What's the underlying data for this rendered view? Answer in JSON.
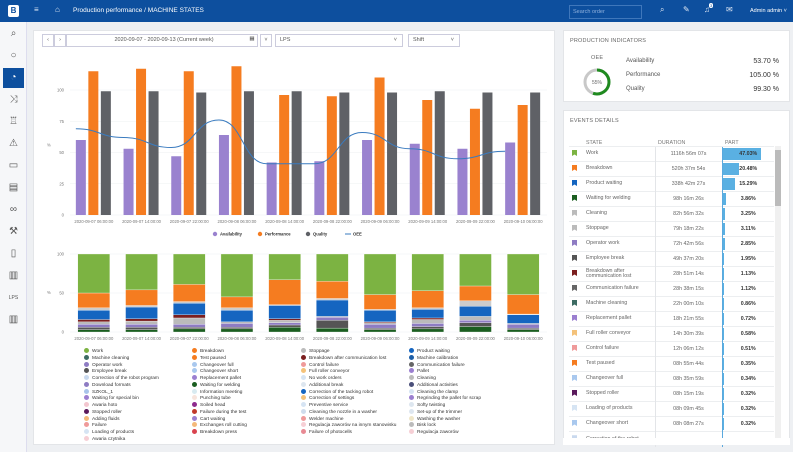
{
  "header": {
    "logo": "B",
    "breadcrumb": "Production performance / MACHINE STATES",
    "search_placeholder": "Search order",
    "user": "Admin admin ˅",
    "notifications": "3"
  },
  "sidebar": {
    "lps_label": "LPS"
  },
  "filters": {
    "date_range": "2020-09-07 - 2020-09-13 (Current week)",
    "line": "LPS",
    "shift": "Shift"
  },
  "indicators": {
    "title": "PRODUCTION INDICATORS",
    "oee_label": "OEE",
    "oee_value": "55%",
    "oee_fraction": 0.55,
    "items": [
      {
        "label": "Availability",
        "value": "53.70 %"
      },
      {
        "label": "Performance",
        "value": "105.00 %"
      },
      {
        "label": "Quality",
        "value": "99.30 %"
      }
    ]
  },
  "events": {
    "title": "EVENTS DETAILS",
    "columns": [
      "STATE",
      "DURATION",
      "PART"
    ],
    "rows": [
      {
        "state": "Work",
        "duration": "1116h 56m 07s",
        "part": "47.03%",
        "pct": 47.03,
        "color": "#7cb342"
      },
      {
        "state": "Breakdown",
        "duration": "520h 37m 54s",
        "part": "20.48%",
        "pct": 20.48,
        "color": "#f57c20"
      },
      {
        "state": "Product waiting",
        "duration": "338h 42m 27s",
        "part": "15.29%",
        "pct": 15.29,
        "color": "#1565c0"
      },
      {
        "state": "Waiting for welding",
        "duration": "98h 16m 26s",
        "part": "3.86%",
        "pct": 3.86,
        "color": "#1b5e20"
      },
      {
        "state": "Cleaning",
        "duration": "82h 56m 32s",
        "part": "3.25%",
        "pct": 3.25,
        "color": "#bbbbbb"
      },
      {
        "state": "Stoppage",
        "duration": "79h 18m 22s",
        "part": "3.11%",
        "pct": 3.11,
        "color": "#bbbbbb"
      },
      {
        "state": "Operator work",
        "duration": "72h 42m 56s",
        "part": "2.85%",
        "pct": 2.85,
        "color": "#8e7cc3"
      },
      {
        "state": "Employee break",
        "duration": "49h 37m 20s",
        "part": "1.95%",
        "pct": 1.95,
        "color": "#555555"
      },
      {
        "state": "Breakdown after communication lost",
        "duration": "28h 51m 14s",
        "part": "1.13%",
        "pct": 1.13,
        "color": "#7b1f1f"
      },
      {
        "state": "Communication failure",
        "duration": "28h 38m 15s",
        "part": "1.12%",
        "pct": 1.12,
        "color": "#666666"
      },
      {
        "state": "Machine cleaning",
        "duration": "22h 00m 10s",
        "part": "0.86%",
        "pct": 0.86,
        "color": "#3d6b63"
      },
      {
        "state": "Replacement pallet",
        "duration": "18h 21m 55s",
        "part": "0.72%",
        "pct": 0.72,
        "color": "#9b7fd0"
      },
      {
        "state": "Full roller conveyor",
        "duration": "14h 30m 39s",
        "part": "0.58%",
        "pct": 0.58,
        "color": "#f4c27a"
      },
      {
        "state": "Control failure",
        "duration": "12h 06m 12s",
        "part": "0.51%",
        "pct": 0.51,
        "color": "#ef9a9a"
      },
      {
        "state": "Test paused",
        "duration": "08h 55m 44s",
        "part": "0.35%",
        "pct": 0.35,
        "color": "#f57c20"
      },
      {
        "state": "Changeover full",
        "duration": "08h 35m 59s",
        "part": "0.34%",
        "pct": 0.34,
        "color": "#a9c8ee"
      },
      {
        "state": "Stopped roller",
        "duration": "08h 15m 19s",
        "part": "0.32%",
        "pct": 0.32,
        "color": "#5a1a5c"
      },
      {
        "state": "Loading of products",
        "duration": "08h 09m 45s",
        "part": "0.32%",
        "pct": 0.32,
        "color": "#d6e4f3"
      },
      {
        "state": "Changeover short",
        "duration": "08h 08m 27s",
        "part": "0.32%",
        "pct": 0.32,
        "color": "#a9c8ee"
      },
      {
        "state": "Correction of the robot",
        "duration": "",
        "part": "",
        "pct": 0,
        "color": "#c9d9ee"
      }
    ]
  },
  "chart_data": [
    {
      "type": "bar",
      "ylabel": "%",
      "ylim": [
        0,
        120
      ],
      "yticks": [
        0,
        25,
        50,
        75,
        100
      ],
      "grid": true,
      "legend": "bottom",
      "categories": [
        "2020-09-07 06:00:00",
        "2020-09-07 14:00:00",
        "2020-09-07 22:00:00",
        "2020-09-08 06:00:00",
        "2020-09-08 14:00:00",
        "2020-09-08 22:00:00",
        "2020-09-09 06:00:00",
        "2020-09-09 14:00:00",
        "2020-09-09 22:00:00",
        "2020-09-10 06:00:00"
      ],
      "series": [
        {
          "name": "Availability",
          "type": "bar",
          "color": "#9a82cf",
          "values": [
            60,
            53,
            47,
            64,
            42,
            43,
            60,
            57,
            53,
            58
          ]
        },
        {
          "name": "Performance",
          "type": "bar",
          "color": "#f57c20",
          "values": [
            115,
            117,
            115,
            119,
            96,
            95,
            110,
            92,
            85,
            88
          ]
        },
        {
          "name": "Quality",
          "type": "bar",
          "color": "#5f6166",
          "values": [
            99,
            99,
            98,
            99,
            99,
            98,
            98,
            99,
            98,
            98
          ]
        },
        {
          "name": "OEE",
          "type": "line",
          "color": "#3a7bbf",
          "values": [
            69,
            62,
            54,
            76,
            41,
            41,
            66,
            53,
            45,
            51
          ]
        }
      ]
    },
    {
      "type": "bar",
      "stacked": true,
      "ylabel": "%",
      "ylim": [
        0,
        100
      ],
      "yticks": [
        0,
        50,
        100
      ],
      "grid": true,
      "legend": "bottom",
      "categories": [
        "2020-09-07 06:00:00",
        "2020-09-07 14:00:00",
        "2020-09-07 22:00:00",
        "2020-09-08 06:00:00",
        "2020-09-08 14:00:00",
        "2020-09-08 22:00:00",
        "2020-09-09 06:00:00",
        "2020-09-09 14:00:00",
        "2020-09-09 22:00:00",
        "2020-09-10 06:00:00"
      ],
      "series": [
        {
          "name": "Waiting for welding",
          "color": "#1b5e20",
          "values": [
            3,
            3,
            4,
            4,
            6,
            5,
            3,
            4,
            7,
            3
          ]
        },
        {
          "name": "Employee break",
          "color": "#555555",
          "values": [
            3,
            3,
            2,
            2,
            3,
            10,
            2,
            3,
            5,
            2
          ]
        },
        {
          "name": "Operator work",
          "color": "#8e7cc3",
          "values": [
            4,
            4,
            4,
            5,
            3,
            4,
            5,
            4,
            3,
            5
          ]
        },
        {
          "name": "Cleaning",
          "color": "#bbbbbb",
          "values": [
            3,
            4,
            8,
            2,
            3,
            1,
            2,
            5,
            5,
            1
          ]
        },
        {
          "name": "Breakdown after communication lost",
          "color": "#7b1f1f",
          "values": [
            3,
            3,
            4,
            0,
            2,
            0,
            1,
            2,
            0,
            0
          ]
        },
        {
          "name": "Product waiting",
          "color": "#1565c0",
          "values": [
            12,
            15,
            15,
            15,
            17,
            21,
            15,
            11,
            13,
            11
          ]
        },
        {
          "name": "Stoppage",
          "color": "#cccccc",
          "values": [
            3,
            2,
            2,
            3,
            1,
            2,
            1,
            2,
            7,
            1
          ]
        },
        {
          "name": "Breakdown",
          "color": "#f57c20",
          "values": [
            19,
            20,
            22,
            14,
            32,
            22,
            19,
            22,
            19,
            25
          ]
        },
        {
          "name": "Work",
          "color": "#7cb342",
          "values": [
            50,
            46,
            39,
            55,
            33,
            35,
            52,
            47,
            41,
            52
          ]
        }
      ],
      "legend_items": [
        [
          [
            "Work",
            "#7cb342"
          ],
          [
            "Machine cleaning",
            "#3d6b63"
          ],
          [
            "Operator work",
            "#8e7cc3"
          ],
          [
            "Employee break",
            "#555555"
          ],
          [
            "Correction of the robot program",
            "#c9d9ee"
          ],
          [
            "Download formats",
            "#8e7cc3"
          ],
          [
            "SZKOL_1",
            "#a9c4ea"
          ],
          [
            "Waiting for special bin",
            "#9d7fd0"
          ],
          [
            "Awaria hoto",
            "#f3c6cf"
          ],
          [
            "Stopped roller",
            "#5a1a5c"
          ],
          [
            "Adding fluids",
            "#f4b97a"
          ],
          [
            "Failure",
            "#ef9a9a"
          ],
          [
            "Loading of products",
            "#d6e4f3"
          ],
          [
            "Awaria czytnika",
            "#f6cfd5"
          ]
        ],
        [
          [
            "Breakdown",
            "#f57c20"
          ],
          [
            "Test paused",
            "#f57c20"
          ],
          [
            "Changeover full",
            "#a9c8ee"
          ],
          [
            "Changeover short",
            "#a9c8ee"
          ],
          [
            "Replacement pallet",
            "#9b7fd0"
          ],
          [
            "Waiting for welding",
            "#1b5e20"
          ],
          [
            "Information meeting",
            "#d8eaf0"
          ],
          [
            "Punching tube",
            "#f7e4dc"
          ],
          [
            "Soiled head",
            "#8e2b8e"
          ],
          [
            "Failure during the test",
            "#c0392b"
          ],
          [
            "Cart waiting",
            "#9b7fd0"
          ],
          [
            "Exchanges roll cutting",
            "#f4b97a"
          ],
          [
            "Breakdown press",
            "#d9434f"
          ]
        ],
        [
          [
            "Stoppage",
            "#bbbbbb"
          ],
          [
            "Breakdown after communication lost",
            "#7b1f1f"
          ],
          [
            "Control failure",
            "#ef9a9a"
          ],
          [
            "Full roller conveyor",
            "#f4c27a"
          ],
          [
            "No work orders",
            "#d6e4f3"
          ],
          [
            "Additional break",
            "#dde6ef"
          ],
          [
            "Correction of the tacking robot",
            "#1565c0"
          ],
          [
            "Correction of settings",
            "#f4c27a"
          ],
          [
            "Preventive service",
            "#d6e4f3"
          ],
          [
            "Cleaning the nozzle in a washer",
            "#cfdcec"
          ],
          [
            "Welder machine",
            "#ef9a9a"
          ],
          [
            "Regulacja zaworów na innym stanowisku",
            "#f6cfd5"
          ],
          [
            "Failure of photocells",
            "#e88a94"
          ]
        ],
        [
          [
            "Product waiting",
            "#1565c0"
          ],
          [
            "Machine calibration",
            "#1e5fa8"
          ],
          [
            "Communication failure",
            "#666666"
          ],
          [
            "Pallet",
            "#9b7fd0"
          ],
          [
            "Cleaning",
            "#bbbbbb"
          ],
          [
            "Additional activities",
            "#4a4f7a"
          ],
          [
            "Cleaning the clamp",
            "#d6e4f3"
          ],
          [
            "Regrinding the pallet for scrap",
            "#9b7fd0"
          ],
          [
            "Softy twisting",
            "#dde6ef"
          ],
          [
            "Set-up of the trimmer",
            "#dde6ef"
          ],
          [
            "Washing the washer",
            "#efe6c8"
          ],
          [
            "Bisk lock",
            "#bbbbbb"
          ],
          [
            "Regulacja zaworów",
            "#f6cfd5"
          ]
        ]
      ]
    }
  ]
}
